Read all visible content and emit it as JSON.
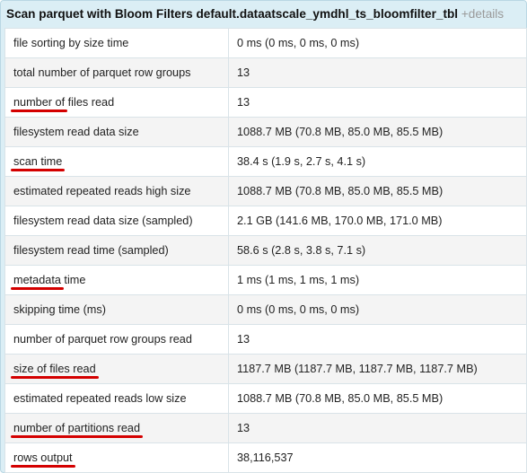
{
  "panel": {
    "title": "Scan parquet with Bloom Filters default.dataatscale_ymdhl_ts_bloomfilter_tbl",
    "details_link": "+details"
  },
  "metrics": [
    {
      "name": "file sorting by size time",
      "value": "0 ms (0 ms, 0 ms, 0 ms)"
    },
    {
      "name": "total number of parquet row groups",
      "value": "13"
    },
    {
      "name": "number of files read",
      "name_underlined": "number of",
      "name_rest": " files read",
      "value": "13"
    },
    {
      "name": "filesystem read data size",
      "value": "1088.7 MB (70.8 MB, 85.0 MB, 85.5 MB)"
    },
    {
      "name": "scan time",
      "value": "38.4 s (1.9 s, 2.7 s, 4.1 s)"
    },
    {
      "name": "estimated repeated reads high size",
      "value": "1088.7 MB (70.8 MB, 85.0 MB, 85.5 MB)"
    },
    {
      "name": "filesystem read data size (sampled)",
      "value": "2.1 GB (141.6 MB, 170.0 MB, 171.0 MB)"
    },
    {
      "name": "filesystem read time (sampled)",
      "value": "58.6 s (2.8 s, 3.8 s, 7.1 s)"
    },
    {
      "name": "metadata time",
      "name_underlined": "metadata",
      "name_rest": " time",
      "value": "1 ms (1 ms, 1 ms, 1 ms)"
    },
    {
      "name": "skipping time (ms)",
      "value": "0 ms (0 ms, 0 ms, 0 ms)"
    },
    {
      "name": "number of parquet row groups read",
      "value": "13"
    },
    {
      "name": "size of files read",
      "value": "1187.7 MB (1187.7 MB, 1187.7 MB, 1187.7 MB)"
    },
    {
      "name": "estimated repeated reads low size",
      "value": "1088.7 MB (70.8 MB, 85.0 MB, 85.5 MB)"
    },
    {
      "name": "number of partitions read",
      "value": "13"
    },
    {
      "name": "rows output",
      "value": "38,116,537"
    }
  ],
  "annotation_color": "#d40000"
}
